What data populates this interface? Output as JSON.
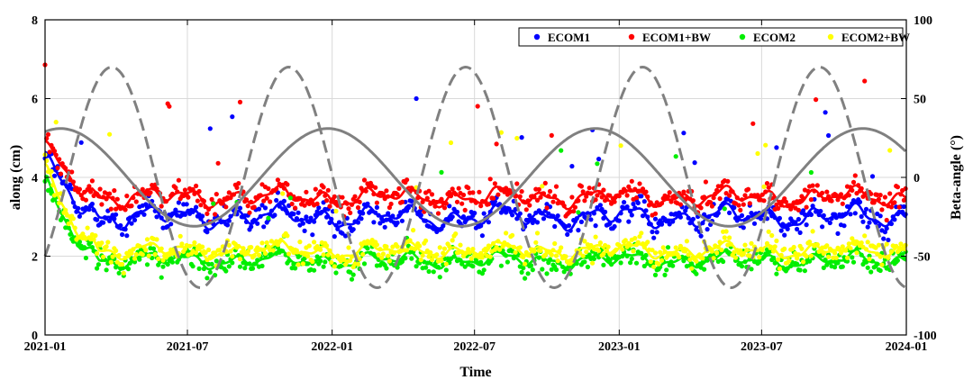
{
  "chart_data": {
    "type": "scatter",
    "title": "",
    "xlabel": "Time",
    "ylabel": "along (cm)",
    "y2label": "Beta-angle (°)",
    "xlim": [
      "2021-01-01",
      "2024-01-01"
    ],
    "ylim": [
      0,
      8
    ],
    "y2lim": [
      -100,
      100
    ],
    "x_ticks": [
      "2021-01",
      "2021-07",
      "2022-01",
      "2022-07",
      "2023-01",
      "2023-07",
      "2024-01"
    ],
    "y_ticks": [
      "0",
      "2",
      "4",
      "6",
      "8"
    ],
    "y2_ticks": [
      "-100",
      "-50",
      "0",
      "50",
      "100"
    ],
    "grid": true,
    "legend_position": "top-right",
    "series": [
      {
        "name": "ECOM1",
        "color": "#0000ff",
        "mean_level": 3.0,
        "amplitude": 0.35,
        "initial": 4.5
      },
      {
        "name": "ECOM1+BW",
        "color": "#ff0000",
        "mean_level": 3.5,
        "amplitude": 0.3,
        "initial": 4.8
      },
      {
        "name": "ECOM2",
        "color": "#00ee00",
        "mean_level": 1.9,
        "amplitude": 0.25,
        "initial": 4.0
      },
      {
        "name": "ECOM2+BW",
        "color": "#ffff00",
        "mean_level": 2.15,
        "amplitude": 0.25,
        "initial": 4.3
      }
    ],
    "beta_angle": [
      {
        "style": "solid",
        "color": "#808080",
        "amplitude_deg": 31,
        "phase_start_deg": 29,
        "period_days": 340
      },
      {
        "style": "dashed",
        "color": "#808080",
        "amplitude_deg": 70,
        "phase_start_deg": -50,
        "period_days": 225
      }
    ]
  }
}
